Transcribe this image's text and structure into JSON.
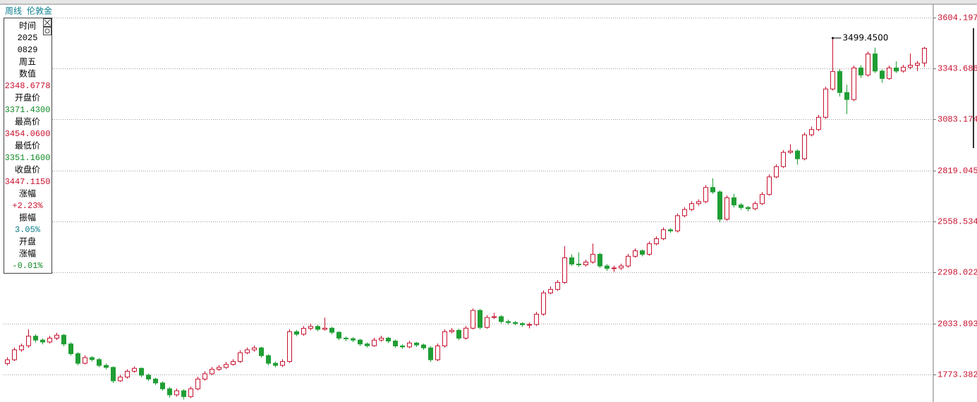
{
  "header": {
    "period": "周线",
    "instrument": "伦敦金"
  },
  "info_panel": {
    "lines": [
      {
        "text": "时间",
        "color": "#000"
      },
      {
        "text": "2025",
        "color": "#000"
      },
      {
        "text": "0829",
        "color": "#000"
      },
      {
        "text": "周五",
        "color": "#000"
      },
      {
        "text": "数值",
        "color": "#000"
      },
      {
        "text": "2348.6778",
        "color": "#c8102e"
      },
      {
        "text": "开盘价",
        "color": "#000"
      },
      {
        "text": "3371.4300",
        "color": "#118a25"
      },
      {
        "text": "最高价",
        "color": "#000"
      },
      {
        "text": "3454.0600",
        "color": "#c8102e"
      },
      {
        "text": "最低价",
        "color": "#000"
      },
      {
        "text": "3351.1600",
        "color": "#118a25"
      },
      {
        "text": "收盘价",
        "color": "#000"
      },
      {
        "text": "3447.1150",
        "color": "#c8102e"
      },
      {
        "text": "涨幅",
        "color": "#000"
      },
      {
        "text": "+2.23%",
        "color": "#c8102e"
      },
      {
        "text": "振幅",
        "color": "#000"
      },
      {
        "text": "3.05%",
        "color": "#0a7d8c"
      },
      {
        "text": "开盘",
        "color": "#000"
      },
      {
        "text": "涨幅",
        "color": "#000"
      },
      {
        "text": "-0.01%",
        "color": "#118a25"
      }
    ]
  },
  "chart_data": {
    "type": "candlestick",
    "up_color": "#c8102e",
    "down_color": "#1f9e34",
    "grid": true,
    "ylim": [
      1632.3,
      3694.6
    ],
    "yticks": [
      1773.382,
      2033.893,
      2298.022,
      2558.534,
      2819.045,
      3083.174,
      3343.686,
      3604.197
    ],
    "annotations": [
      {
        "value": 3499.45,
        "label": "3499.4500"
      }
    ],
    "candles": [
      [
        1830,
        1862,
        1820,
        1849
      ],
      [
        1849,
        1912,
        1842,
        1900
      ],
      [
        1900,
        1932,
        1890,
        1921
      ],
      [
        1921,
        2005,
        1910,
        1970
      ],
      [
        1970,
        1980,
        1938,
        1950
      ],
      [
        1950,
        1958,
        1928,
        1940
      ],
      [
        1940,
        1972,
        1932,
        1960
      ],
      [
        1960,
        1988,
        1950,
        1975
      ],
      [
        1975,
        1982,
        1918,
        1930
      ],
      [
        1930,
        1938,
        1870,
        1880
      ],
      [
        1880,
        1888,
        1820,
        1831
      ],
      [
        1831,
        1872,
        1825,
        1860
      ],
      [
        1860,
        1868,
        1840,
        1850
      ],
      [
        1850,
        1858,
        1810,
        1820
      ],
      [
        1820,
        1830,
        1800,
        1810
      ],
      [
        1810,
        1815,
        1730,
        1741
      ],
      [
        1741,
        1772,
        1735,
        1760
      ],
      [
        1760,
        1800,
        1752,
        1790
      ],
      [
        1790,
        1815,
        1782,
        1805
      ],
      [
        1805,
        1810,
        1760,
        1770
      ],
      [
        1770,
        1778,
        1740,
        1750
      ],
      [
        1750,
        1756,
        1720,
        1730
      ],
      [
        1730,
        1738,
        1690,
        1700
      ],
      [
        1700,
        1710,
        1655,
        1669
      ],
      [
        1669,
        1702,
        1660,
        1690
      ],
      [
        1690,
        1698,
        1645,
        1660
      ],
      [
        1660,
        1712,
        1652,
        1700
      ],
      [
        1700,
        1762,
        1692,
        1750
      ],
      [
        1750,
        1790,
        1742,
        1777
      ],
      [
        1777,
        1812,
        1770,
        1800
      ],
      [
        1800,
        1822,
        1792,
        1810
      ],
      [
        1810,
        1838,
        1802,
        1825
      ],
      [
        1825,
        1852,
        1818,
        1840
      ],
      [
        1840,
        1898,
        1832,
        1885
      ],
      [
        1885,
        1912,
        1878,
        1900
      ],
      [
        1900,
        1922,
        1890,
        1910
      ],
      [
        1910,
        1916,
        1860,
        1870
      ],
      [
        1870,
        1878,
        1820,
        1831
      ],
      [
        1831,
        1840,
        1810,
        1820
      ],
      [
        1820,
        1852,
        1812,
        1840
      ],
      [
        1840,
        2005,
        1832,
        1993
      ],
      [
        1993,
        2002,
        1970,
        1980
      ],
      [
        1980,
        2022,
        1972,
        2010
      ],
      [
        2010,
        2035,
        2000,
        2020
      ],
      [
        2020,
        2028,
        1995,
        2005
      ],
      [
        2005,
        2065,
        1998,
        2011
      ],
      [
        2011,
        2018,
        1980,
        1990
      ],
      [
        1990,
        1996,
        1950,
        1960
      ],
      [
        1960,
        1968,
        1945,
        1957
      ],
      [
        1957,
        1965,
        1940,
        1950
      ],
      [
        1950,
        1956,
        1920,
        1930
      ],
      [
        1930,
        1938,
        1912,
        1921
      ],
      [
        1921,
        1962,
        1915,
        1950
      ],
      [
        1950,
        1972,
        1942,
        1960
      ],
      [
        1960,
        1966,
        1935,
        1945
      ],
      [
        1945,
        1952,
        1910,
        1920
      ],
      [
        1920,
        1928,
        1905,
        1915
      ],
      [
        1915,
        1946,
        1908,
        1935
      ],
      [
        1935,
        1940,
        1915,
        1925
      ],
      [
        1925,
        1932,
        1900,
        1910
      ],
      [
        1910,
        1918,
        1838,
        1849
      ],
      [
        1849,
        1932,
        1842,
        1920
      ],
      [
        1920,
        2005,
        1912,
        1993
      ],
      [
        1993,
        2012,
        1985,
        2000
      ],
      [
        2000,
        2008,
        1950,
        1960
      ],
      [
        1960,
        2022,
        1952,
        2011
      ],
      [
        2011,
        2112,
        2005,
        2102
      ],
      [
        2102,
        2110,
        2005,
        2015
      ],
      [
        2015,
        2078,
        2008,
        2066
      ],
      [
        2066,
        2090,
        2058,
        2070
      ],
      [
        2070,
        2078,
        2035,
        2045
      ],
      [
        2045,
        2055,
        2030,
        2040
      ],
      [
        2040,
        2048,
        2025,
        2035
      ],
      [
        2035,
        2042,
        2018,
        2029
      ],
      [
        2029,
        2040,
        2010,
        2030
      ],
      [
        2030,
        2095,
        2022,
        2083
      ],
      [
        2083,
        2205,
        2075,
        2192
      ],
      [
        2192,
        2225,
        2185,
        2210
      ],
      [
        2210,
        2258,
        2202,
        2246
      ],
      [
        2246,
        2432,
        2238,
        2372
      ],
      [
        2372,
        2390,
        2330,
        2340
      ],
      [
        2340,
        2400,
        2325,
        2336
      ],
      [
        2336,
        2362,
        2328,
        2350
      ],
      [
        2350,
        2445,
        2342,
        2390
      ],
      [
        2390,
        2398,
        2320,
        2330
      ],
      [
        2330,
        2340,
        2305,
        2318
      ],
      [
        2318,
        2332,
        2300,
        2320
      ],
      [
        2320,
        2342,
        2310,
        2330
      ],
      [
        2330,
        2392,
        2322,
        2380
      ],
      [
        2380,
        2420,
        2372,
        2408
      ],
      [
        2408,
        2415,
        2380,
        2390
      ],
      [
        2390,
        2456,
        2382,
        2444
      ],
      [
        2444,
        2482,
        2436,
        2470
      ],
      [
        2470,
        2528,
        2462,
        2516
      ],
      [
        2516,
        2524,
        2500,
        2510
      ],
      [
        2510,
        2600,
        2502,
        2588
      ],
      [
        2588,
        2632,
        2580,
        2620
      ],
      [
        2620,
        2662,
        2612,
        2650
      ],
      [
        2650,
        2672,
        2640,
        2660
      ],
      [
        2660,
        2745,
        2652,
        2733
      ],
      [
        2733,
        2780,
        2700,
        2710
      ],
      [
        2710,
        2718,
        2555,
        2570
      ],
      [
        2570,
        2692,
        2562,
        2680
      ],
      [
        2680,
        2700,
        2630,
        2643
      ],
      [
        2643,
        2652,
        2618,
        2630
      ],
      [
        2630,
        2638,
        2610,
        2624
      ],
      [
        2624,
        2662,
        2616,
        2650
      ],
      [
        2650,
        2710,
        2642,
        2697
      ],
      [
        2697,
        2800,
        2690,
        2787
      ],
      [
        2787,
        2852,
        2780,
        2840
      ],
      [
        2840,
        2925,
        2832,
        2913
      ],
      [
        2913,
        2955,
        2905,
        2920
      ],
      [
        2920,
        2928,
        2850,
        2880
      ],
      [
        2880,
        3015,
        2872,
        3003
      ],
      [
        3003,
        3045,
        2995,
        3030
      ],
      [
        3030,
        3105,
        3022,
        3093
      ],
      [
        3093,
        3250,
        3085,
        3238
      ],
      [
        3238,
        3499.45,
        3230,
        3328
      ],
      [
        3328,
        3340,
        3200,
        3220
      ],
      [
        3220,
        3260,
        3110,
        3184
      ],
      [
        3184,
        3358,
        3176,
        3346
      ],
      [
        3346,
        3360,
        3295,
        3310
      ],
      [
        3310,
        3430,
        3302,
        3418
      ],
      [
        3418,
        3450,
        3320,
        3330
      ],
      [
        3330,
        3338,
        3270,
        3292
      ],
      [
        3292,
        3358,
        3285,
        3346
      ],
      [
        3346,
        3380,
        3320,
        3330
      ],
      [
        3330,
        3362,
        3322,
        3350
      ],
      [
        3350,
        3420,
        3340,
        3360
      ],
      [
        3360,
        3382,
        3330,
        3370
      ],
      [
        3371.43,
        3454.06,
        3351.16,
        3447.115
      ]
    ]
  }
}
